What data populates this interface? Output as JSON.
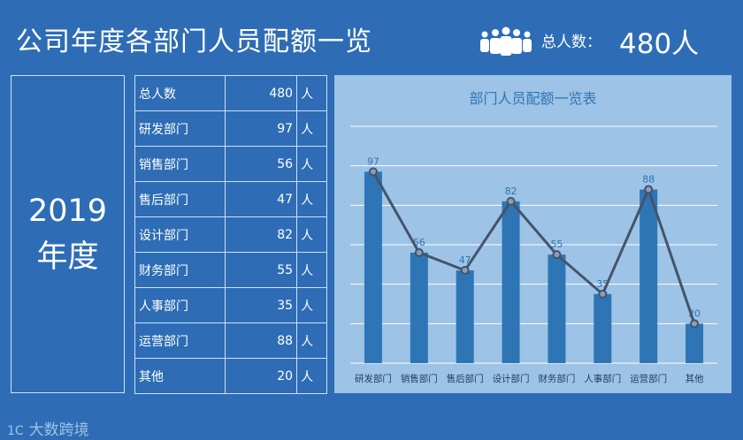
{
  "header": {
    "title": "公司年度各部门人员配额一览",
    "total_label": "总人数：",
    "total_value": "480人",
    "icon": "people-group-icon"
  },
  "year_box": {
    "year": "2019",
    "suffix": "年度"
  },
  "table": {
    "unit": "人",
    "rows": [
      {
        "name": "总人数",
        "value": "480"
      },
      {
        "name": "研发部门",
        "value": "97"
      },
      {
        "name": "销售部门",
        "value": "56"
      },
      {
        "name": "售后部门",
        "value": "47"
      },
      {
        "name": "设计部门",
        "value": "82"
      },
      {
        "name": "财务部门",
        "value": "55"
      },
      {
        "name": "人事部门",
        "value": "35"
      },
      {
        "name": "运营部门",
        "value": "88"
      },
      {
        "name": "其他",
        "value": "20"
      }
    ]
  },
  "chart_data": {
    "type": "bar",
    "title": "部门人员配额一览表",
    "categories": [
      "研发部门",
      "销售部门",
      "售后部门",
      "设计部门",
      "财务部门",
      "人事部门",
      "运营部门",
      "其他"
    ],
    "values": [
      97,
      56,
      47,
      82,
      55,
      35,
      88,
      20
    ],
    "overlay_line": true,
    "ylim": [
      0,
      120
    ],
    "grid": true,
    "colors": {
      "bar": "#2e75b6",
      "line": "#44546a",
      "grid": "#ffffff",
      "label": "#2e75b6"
    }
  },
  "watermark": {
    "mark": "1C",
    "text": "大数跨境"
  }
}
